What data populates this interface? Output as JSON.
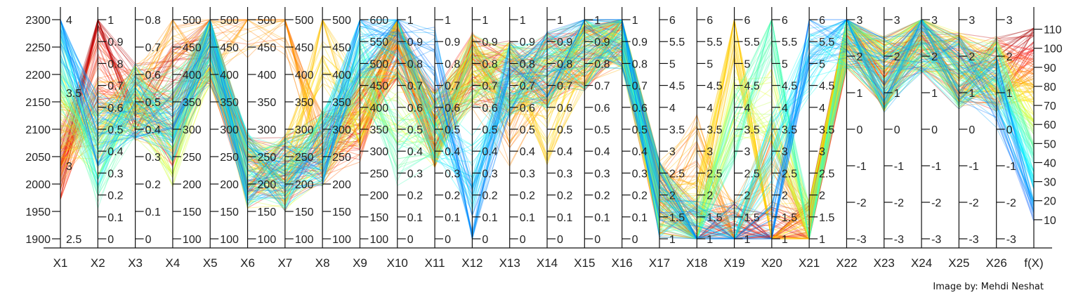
{
  "chart_data": {
    "type": "parallel-coordinates",
    "title": "",
    "credit": "Image by: Mehdi Neshat",
    "color_by": "f(X)",
    "colormap": [
      "#0000ff",
      "#0099ff",
      "#00ffff",
      "#66ff99",
      "#ffff00",
      "#ffaa00",
      "#ff0000",
      "#800000"
    ],
    "grid": false,
    "axes": [
      {
        "name": "X1",
        "range": [
          1900,
          2300
        ],
        "ticks": [
          1900,
          1950,
          2000,
          2050,
          2100,
          2150,
          2200,
          2250,
          2300
        ],
        "tick_side": "left",
        "secondary_range": [
          2.5,
          4
        ],
        "secondary_ticks": [
          2.5,
          3,
          3.5,
          4
        ]
      },
      {
        "name": "X2",
        "range": [
          0,
          1
        ],
        "ticks": [
          0,
          0.1,
          0.2,
          0.3,
          0.4,
          0.5,
          0.6,
          0.7,
          0.8,
          0.9,
          1
        ],
        "tick_side": "right"
      },
      {
        "name": "X3",
        "range": [
          0,
          0.8
        ],
        "ticks": [
          0,
          0.1,
          0.2,
          0.3,
          0.4,
          0.5,
          0.6,
          0.7,
          0.8
        ],
        "tick_side": "right"
      },
      {
        "name": "X4",
        "range": [
          100,
          500
        ],
        "ticks": [
          100,
          150,
          200,
          250,
          300,
          350,
          400,
          450,
          500
        ],
        "tick_side": "right"
      },
      {
        "name": "X5",
        "range": [
          100,
          500
        ],
        "ticks": [
          100,
          150,
          200,
          250,
          300,
          350,
          400,
          450,
          500
        ],
        "tick_side": "right"
      },
      {
        "name": "X6",
        "range": [
          100,
          500
        ],
        "ticks": [
          100,
          150,
          200,
          250,
          300,
          350,
          400,
          450,
          500
        ],
        "tick_side": "right"
      },
      {
        "name": "X7",
        "range": [
          100,
          500
        ],
        "ticks": [
          100,
          150,
          200,
          250,
          300,
          350,
          400,
          450,
          500
        ],
        "tick_side": "right"
      },
      {
        "name": "X8",
        "range": [
          100,
          500
        ],
        "ticks": [
          100,
          150,
          200,
          250,
          300,
          350,
          400,
          450,
          500
        ],
        "tick_side": "right"
      },
      {
        "name": "X9",
        "range": [
          100,
          600
        ],
        "ticks": [
          100,
          150,
          200,
          250,
          300,
          350,
          400,
          450,
          500,
          550,
          600
        ],
        "tick_side": "right"
      },
      {
        "name": "X10",
        "range": [
          0,
          1
        ],
        "ticks": [
          0,
          0.1,
          0.2,
          0.3,
          0.4,
          0.5,
          0.6,
          0.7,
          0.8,
          0.9,
          1
        ],
        "tick_side": "right"
      },
      {
        "name": "X11",
        "range": [
          0,
          1
        ],
        "ticks": [
          0,
          0.1,
          0.2,
          0.3,
          0.4,
          0.5,
          0.6,
          0.7,
          0.8,
          0.9,
          1
        ],
        "tick_side": "right"
      },
      {
        "name": "X12",
        "range": [
          0,
          1
        ],
        "ticks": [
          0,
          0.1,
          0.2,
          0.3,
          0.4,
          0.5,
          0.6,
          0.7,
          0.8,
          0.9,
          1
        ],
        "tick_side": "right"
      },
      {
        "name": "X13",
        "range": [
          0,
          1
        ],
        "ticks": [
          0,
          0.1,
          0.2,
          0.3,
          0.4,
          0.5,
          0.6,
          0.7,
          0.8,
          0.9,
          1
        ],
        "tick_side": "right"
      },
      {
        "name": "X14",
        "range": [
          0,
          1
        ],
        "ticks": [
          0,
          0.1,
          0.2,
          0.3,
          0.4,
          0.5,
          0.6,
          0.7,
          0.8,
          0.9,
          1
        ],
        "tick_side": "right"
      },
      {
        "name": "X15",
        "range": [
          0,
          1
        ],
        "ticks": [
          0,
          0.1,
          0.2,
          0.3,
          0.4,
          0.5,
          0.6,
          0.7,
          0.8,
          0.9,
          1
        ],
        "tick_side": "right"
      },
      {
        "name": "X16",
        "range": [
          0,
          1
        ],
        "ticks": [
          0,
          0.1,
          0.2,
          0.3,
          0.4,
          0.5,
          0.6,
          0.7,
          0.8,
          0.9,
          1
        ],
        "tick_side": "right"
      },
      {
        "name": "X17",
        "range": [
          1,
          6
        ],
        "ticks": [
          1,
          1.5,
          2,
          2.5,
          3,
          3.5,
          4,
          4.5,
          5,
          5.5,
          6
        ],
        "tick_side": "right"
      },
      {
        "name": "X18",
        "range": [
          1,
          6
        ],
        "ticks": [
          1,
          1.5,
          2,
          2.5,
          3,
          3.5,
          4,
          4.5,
          5,
          5.5,
          6
        ],
        "tick_side": "right"
      },
      {
        "name": "X19",
        "range": [
          1,
          6
        ],
        "ticks": [
          1,
          1.5,
          2,
          2.5,
          3,
          3.5,
          4,
          4.5,
          5,
          5.5,
          6
        ],
        "tick_side": "right"
      },
      {
        "name": "X20",
        "range": [
          1,
          6
        ],
        "ticks": [
          1,
          1.5,
          2,
          2.5,
          3,
          3.5,
          4,
          4.5,
          5,
          5.5,
          6
        ],
        "tick_side": "right"
      },
      {
        "name": "X21",
        "range": [
          1,
          6
        ],
        "ticks": [
          1,
          1.5,
          2,
          2.5,
          3,
          3.5,
          4,
          4.5,
          5,
          5.5,
          6
        ],
        "tick_side": "right"
      },
      {
        "name": "X22",
        "range": [
          -3,
          3
        ],
        "ticks": [
          -3,
          -2,
          -1,
          0,
          1,
          2,
          3
        ],
        "tick_side": "right"
      },
      {
        "name": "X23",
        "range": [
          -3,
          3
        ],
        "ticks": [
          -3,
          -2,
          -1,
          0,
          1,
          2,
          3
        ],
        "tick_side": "right"
      },
      {
        "name": "X24",
        "range": [
          -3,
          3
        ],
        "ticks": [
          -3,
          -2,
          -1,
          0,
          1,
          2,
          3
        ],
        "tick_side": "right"
      },
      {
        "name": "X25",
        "range": [
          -3,
          3
        ],
        "ticks": [
          -3,
          -2,
          -1,
          0,
          1,
          2,
          3
        ],
        "tick_side": "right"
      },
      {
        "name": "X26",
        "range": [
          -3,
          3
        ],
        "ticks": [
          -3,
          -2,
          -1,
          0,
          1,
          2,
          3
        ],
        "tick_side": "right"
      },
      {
        "name": "f(X)",
        "range": [
          0,
          115
        ],
        "ticks": [
          10,
          20,
          30,
          40,
          50,
          60,
          70,
          80,
          90,
          100,
          110
        ],
        "tick_side": "right"
      }
    ],
    "cluster_values": [
      {
        "X1": 2040,
        "X2": 1.0,
        "X3": 0.5,
        "X4": 400,
        "X5": 450,
        "X6": 225,
        "X7": 220,
        "X8": 265,
        "X9": 390,
        "X10": 0.9,
        "X11": 0.5,
        "X12": 0.77,
        "X13": 0.73,
        "X14": 0.77,
        "X15": 0.85,
        "X16": 0.95,
        "X17": 1.9,
        "X18": 1.0,
        "X19": 1.0,
        "X20": 1.0,
        "X21": 1.0,
        "X22": 2.7,
        "X23": 1.5,
        "X24": 2.6,
        "X25": 1.6,
        "X26": 1.5,
        "f(X)": 105
      },
      {
        "X1": 2040,
        "X2": 0.8,
        "X3": 0.5,
        "X4": 300,
        "X5": 450,
        "X6": 225,
        "X7": 220,
        "X8": 265,
        "X9": 360,
        "X10": 0.9,
        "X11": 0.5,
        "X12": 0.77,
        "X13": 0.73,
        "X14": 0.77,
        "X15": 0.85,
        "X16": 0.95,
        "X17": 1.9,
        "X18": 1.0,
        "X19": 1.0,
        "X20": 1.0,
        "X21": 1.0,
        "X22": 2.7,
        "X23": 1.5,
        "X24": 2.6,
        "X25": 1.6,
        "X26": 1.5,
        "f(X)": 95
      },
      {
        "X1": 2060,
        "X2": 0.6,
        "X3": 0.5,
        "X4": 450,
        "X5": 450,
        "X6": 500,
        "X7": 500,
        "X8": 265,
        "X9": 390,
        "X10": 0.9,
        "X11": 0.5,
        "X12": 0.77,
        "X13": 0.5,
        "X14": 0.77,
        "X15": 0.85,
        "X16": 0.95,
        "X17": 1.9,
        "X18": 3.0,
        "X19": 1.0,
        "X20": 3.0,
        "X21": 1.0,
        "X22": 2.7,
        "X23": 1.5,
        "X24": 2.6,
        "X25": 1.6,
        "X26": 1.5,
        "f(X)": 85
      },
      {
        "X1": 2100,
        "X2": 0.5,
        "X3": 0.5,
        "X4": 300,
        "X5": 450,
        "X6": 225,
        "X7": 220,
        "X8": 450,
        "X9": 390,
        "X10": 0.9,
        "X11": 0.5,
        "X12": 0.77,
        "X13": 0.73,
        "X14": 0.5,
        "X15": 0.85,
        "X16": 0.95,
        "X17": 1.9,
        "X18": 1.5,
        "X19": 6.0,
        "X20": 1.0,
        "X21": 1.0,
        "X22": 2.7,
        "X23": 1.5,
        "X24": 2.6,
        "X25": 1.6,
        "X26": 1.5,
        "f(X)": 75
      },
      {
        "X1": 2150,
        "X2": 0.4,
        "X3": 0.5,
        "X4": 250,
        "X5": 450,
        "X6": 225,
        "X7": 220,
        "X8": 265,
        "X9": 400,
        "X10": 0.6,
        "X11": 0.5,
        "X12": 0.77,
        "X13": 0.73,
        "X14": 0.77,
        "X15": 0.85,
        "X16": 0.95,
        "X17": 1.9,
        "X18": 1.0,
        "X19": 4.0,
        "X20": 4.0,
        "X21": 1.0,
        "X22": 2.7,
        "X23": 1.5,
        "X24": 2.6,
        "X25": 1.6,
        "X26": 1.5,
        "f(X)": 60
      },
      {
        "X1": 2200,
        "X2": 0.3,
        "X3": 0.5,
        "X4": 350,
        "X5": 450,
        "X6": 225,
        "X7": 220,
        "X8": 265,
        "X9": 500,
        "X10": 0.4,
        "X11": 0.5,
        "X12": 0.77,
        "X13": 0.73,
        "X14": 0.77,
        "X15": 0.85,
        "X16": 0.95,
        "X17": 1.9,
        "X18": 1.0,
        "X19": 3.5,
        "X20": 6.0,
        "X21": 1.0,
        "X22": 2.7,
        "X23": 1.5,
        "X24": 2.6,
        "X25": 1.6,
        "X26": 1.5,
        "f(X)": 45
      },
      {
        "X1": 2250,
        "X2": 0.4,
        "X3": 0.5,
        "X4": 300,
        "X5": 450,
        "X6": 225,
        "X7": 220,
        "X8": 265,
        "X9": 550,
        "X10": 0.9,
        "X11": 0.5,
        "X12": 0.3,
        "X13": 0.73,
        "X14": 0.77,
        "X15": 0.85,
        "X16": 0.95,
        "X17": 1.9,
        "X18": 1.0,
        "X19": 1.0,
        "X20": 3.0,
        "X21": 5.0,
        "X22": 2.7,
        "X23": 1.5,
        "X24": 2.6,
        "X25": 1.6,
        "X26": 1.5,
        "f(X)": 30
      },
      {
        "X1": 2290,
        "X2": 0.5,
        "X3": 0.5,
        "X4": 300,
        "X5": 450,
        "X6": 225,
        "X7": 220,
        "X8": 265,
        "X9": 550,
        "X10": 0.95,
        "X11": 0.8,
        "X12": 0.1,
        "X13": 0.73,
        "X14": 0.77,
        "X15": 0.95,
        "X16": 0.95,
        "X17": 1.9,
        "X18": 1.0,
        "X19": 1.0,
        "X20": 1.0,
        "X21": 5.8,
        "X22": 2.7,
        "X23": 1.5,
        "X24": 2.6,
        "X25": 1.6,
        "X26": 1.0,
        "f(X)": 15
      }
    ]
  }
}
